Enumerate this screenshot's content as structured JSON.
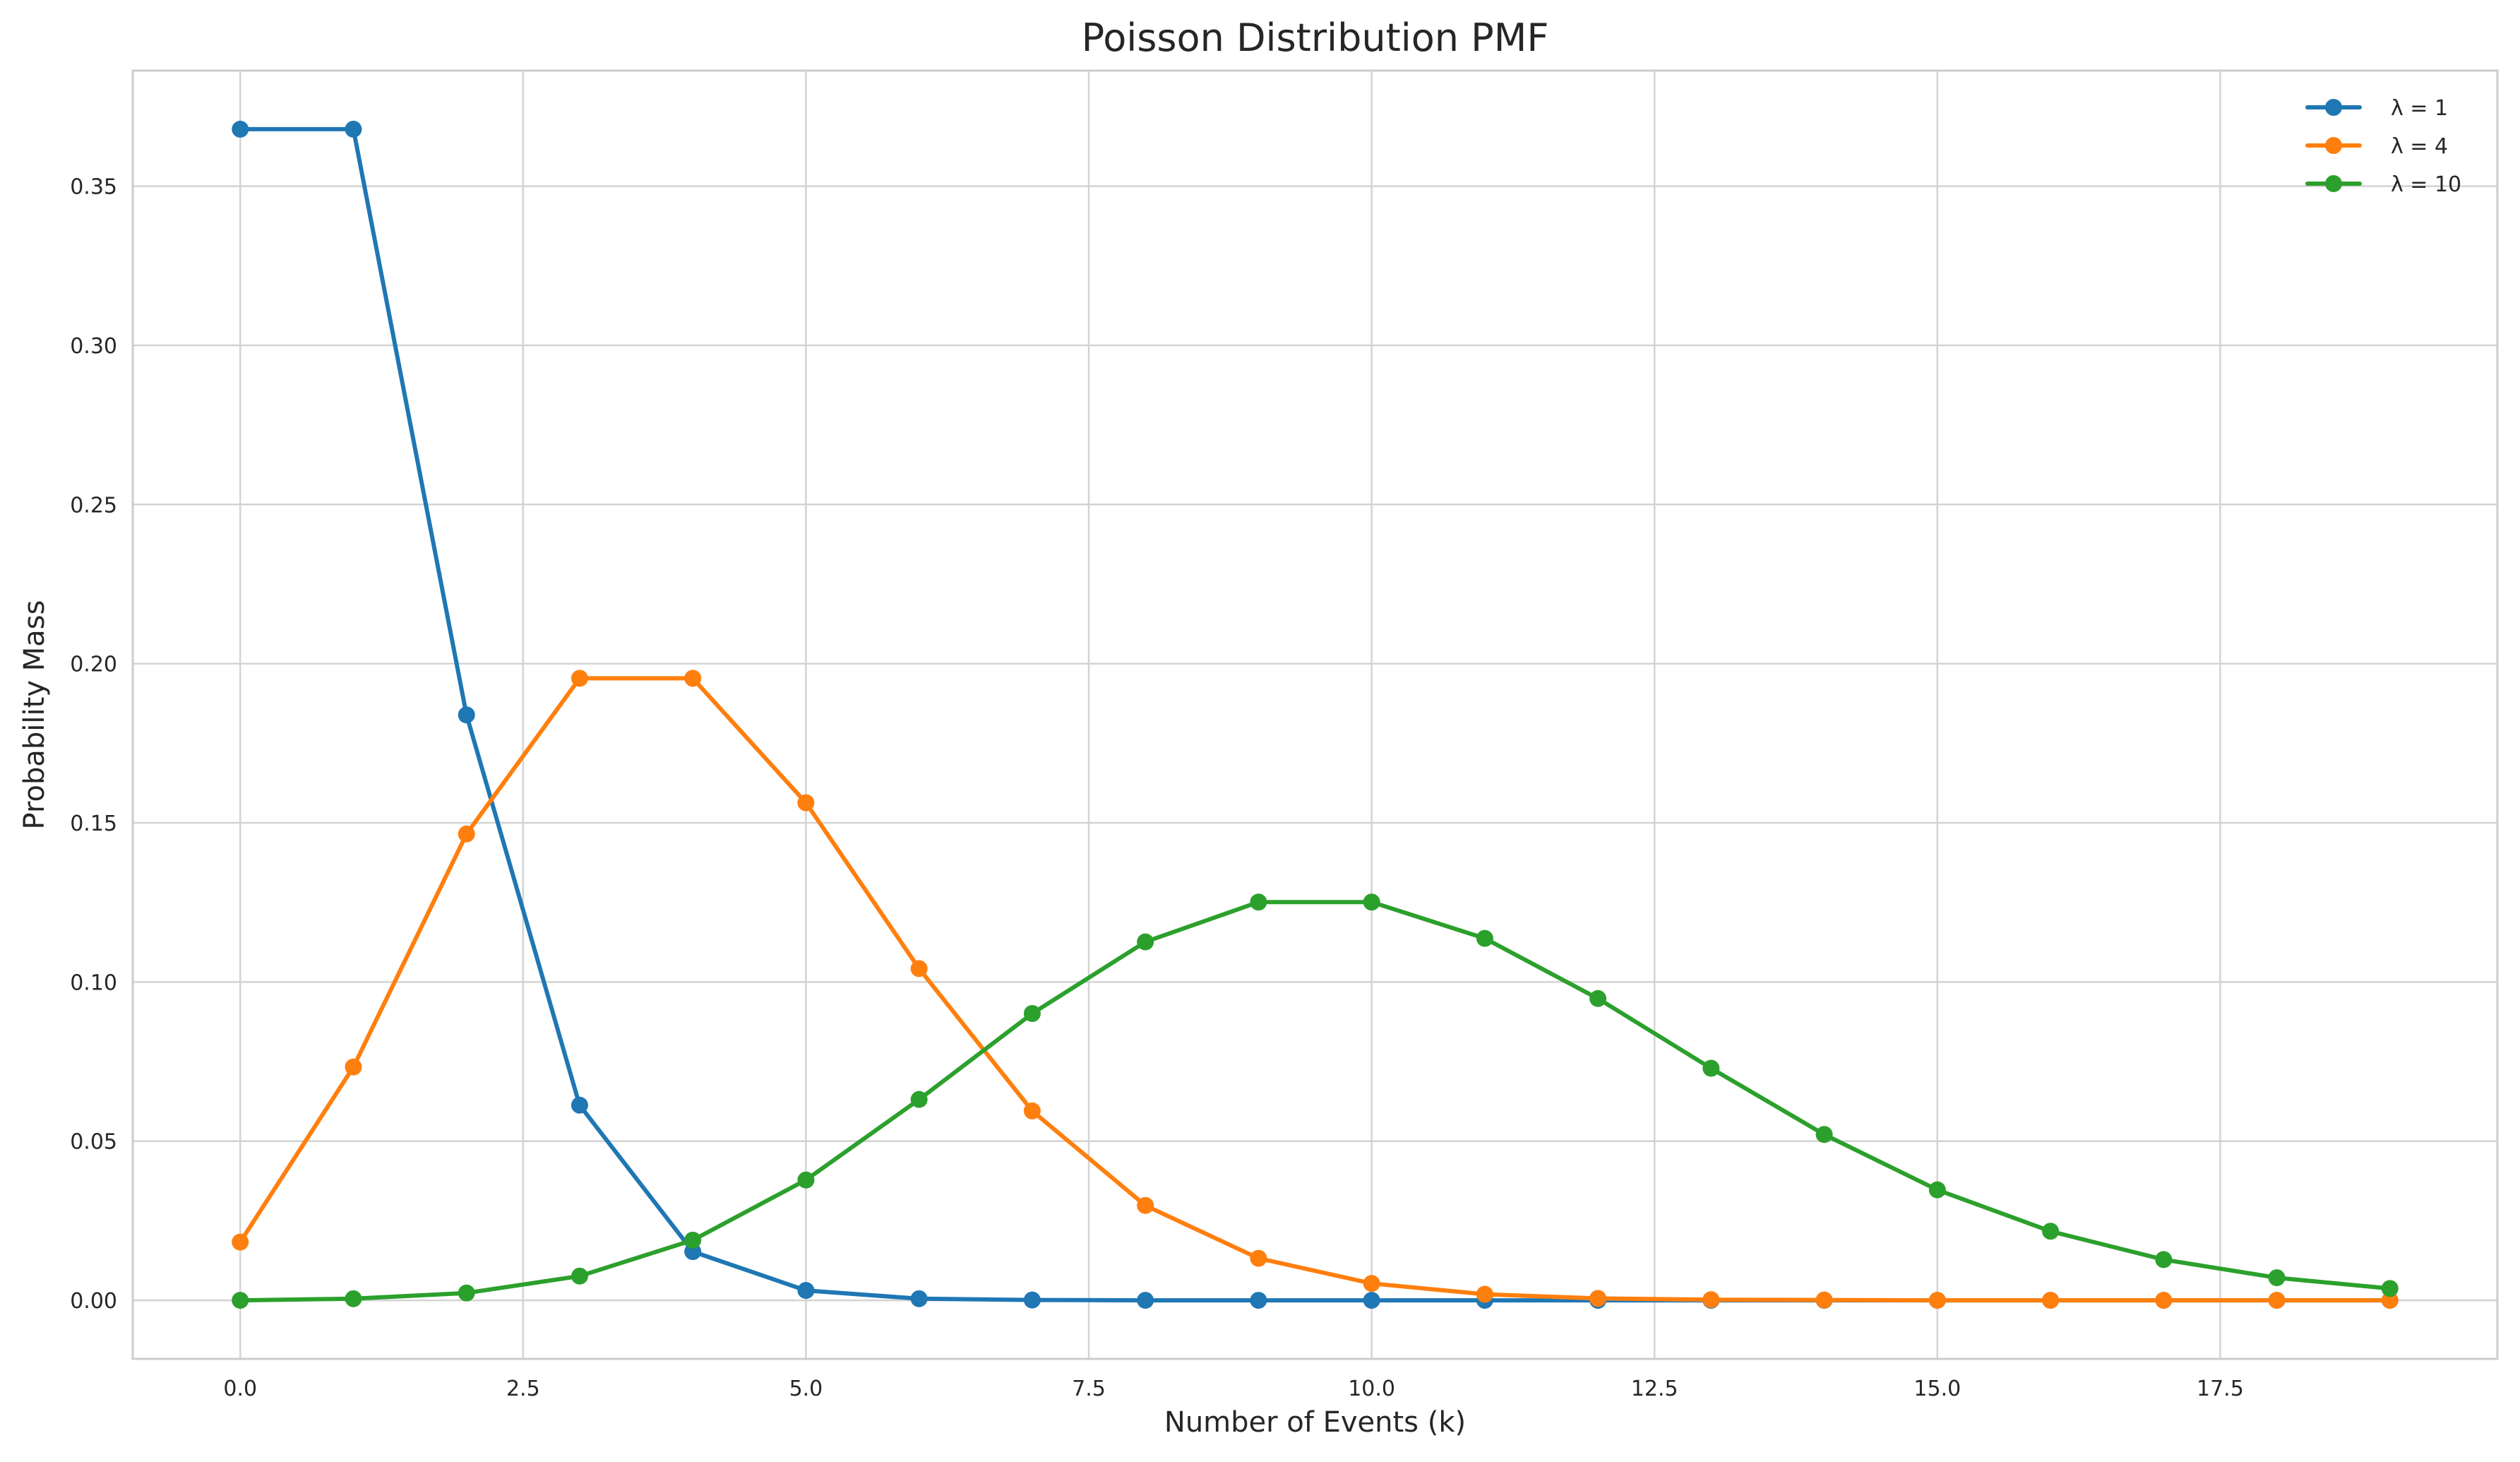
{
  "chart_data": {
    "type": "line",
    "title": "Poisson Distribution PMF",
    "xlabel": "Number of Events (k)",
    "ylabel": "Probability Mass",
    "xlim": [
      -0.95,
      19.95
    ],
    "ylim": [
      -0.0184,
      0.3863
    ],
    "xticks": [
      0,
      2.5,
      5,
      7.5,
      10,
      12.5,
      15,
      17.5
    ],
    "xtick_labels": [
      "0.0",
      "2.5",
      "5.0",
      "7.5",
      "10.0",
      "12.5",
      "15.0",
      "17.5"
    ],
    "yticks": [
      0,
      0.05,
      0.1,
      0.15,
      0.2,
      0.25,
      0.3,
      0.35
    ],
    "ytick_labels": [
      "0.00",
      "0.05",
      "0.10",
      "0.15",
      "0.20",
      "0.25",
      "0.30",
      "0.35"
    ],
    "grid": true,
    "legend_position": "top-right",
    "x": [
      0,
      1,
      2,
      3,
      4,
      5,
      6,
      7,
      8,
      9,
      10,
      11,
      12,
      13,
      14,
      15,
      16,
      17,
      18,
      19
    ],
    "series": [
      {
        "name": "λ = 1",
        "color": "#1f77b4",
        "values": [
          0.3679,
          0.3679,
          0.1839,
          0.0613,
          0.0153,
          0.0031,
          0.0005,
          0.0001,
          0.0,
          0.0,
          0.0,
          0.0,
          0.0,
          0.0,
          0.0,
          0.0,
          0.0,
          0.0,
          0.0,
          0.0
        ]
      },
      {
        "name": "λ = 4",
        "color": "#ff7f0e",
        "values": [
          0.0183,
          0.0733,
          0.1465,
          0.1954,
          0.1954,
          0.1563,
          0.1042,
          0.0595,
          0.0298,
          0.0132,
          0.0053,
          0.0019,
          0.0006,
          0.0002,
          0.0001,
          0.0,
          0.0,
          0.0,
          0.0,
          0.0
        ]
      },
      {
        "name": "λ = 10",
        "color": "#2ca02c",
        "values": [
          0.0,
          0.0005,
          0.0023,
          0.0076,
          0.0189,
          0.0378,
          0.0631,
          0.0901,
          0.1126,
          0.1251,
          0.1251,
          0.1137,
          0.0948,
          0.0729,
          0.0521,
          0.0347,
          0.0217,
          0.0128,
          0.0071,
          0.0037
        ]
      }
    ]
  }
}
